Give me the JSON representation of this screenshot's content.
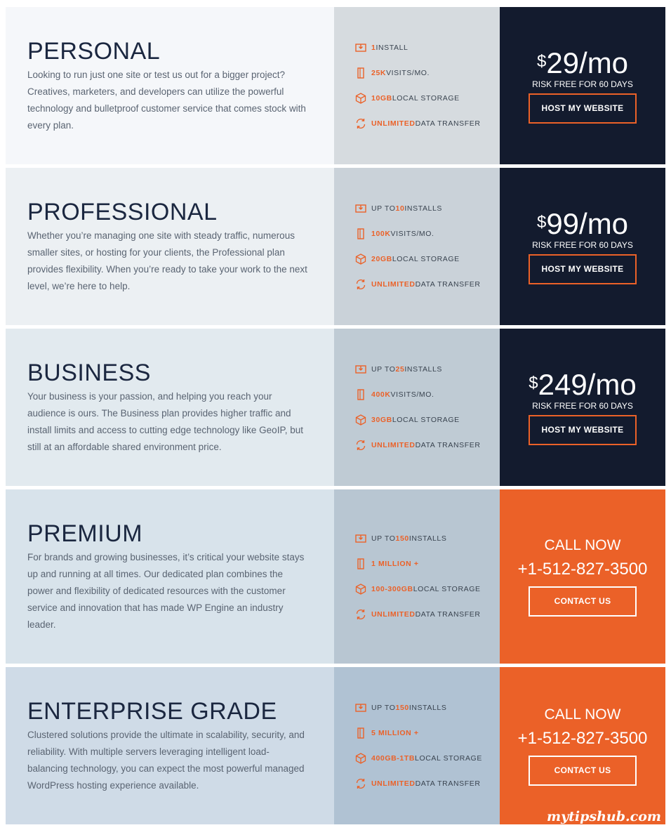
{
  "colors": {
    "accent": "#eb6128",
    "dark": "#131b2e"
  },
  "plans": [
    {
      "title": "PERSONAL",
      "description": "Looking to run just one site or test us out for a bigger project? Creatives, marketers, and developers can utilize the powerful technology and bulletproof customer service that comes stock with every plan.",
      "bg": "#f5f7fa",
      "mid_bg": "#d6dbdf",
      "features": [
        {
          "icon": "install-icon",
          "prefix": "",
          "highlight": "1",
          "suffix": " INSTALL"
        },
        {
          "icon": "visits-icon",
          "prefix": "",
          "highlight": "25K",
          "suffix": " VISITS/MO."
        },
        {
          "icon": "storage-box-icon",
          "prefix": "",
          "highlight": "10GB",
          "suffix": " LOCAL STORAGE"
        },
        {
          "icon": "transfer-refresh-icon",
          "prefix": "",
          "highlight": "UNLIMITED",
          "suffix": " DATA TRANSFER"
        }
      ],
      "price": {
        "type": "price",
        "currency": "$",
        "amount": "29",
        "unit": "/mo",
        "note": "RISK FREE FOR 60 DAYS",
        "button": "HOST MY WEBSITE"
      }
    },
    {
      "title": "PROFESSIONAL",
      "description": "Whether you’re managing one site with steady traffic, numerous smaller sites, or hosting for your clients, the Professional plan provides flexibility. When you’re ready to take your work to the next level, we’re here to help.",
      "bg": "#ecf0f3",
      "mid_bg": "#cad2d9",
      "features": [
        {
          "icon": "install-icon",
          "prefix": "UP TO ",
          "highlight": "10",
          "suffix": " INSTALLS"
        },
        {
          "icon": "visits-icon",
          "prefix": "",
          "highlight": "100K",
          "suffix": " VISITS/MO."
        },
        {
          "icon": "storage-box-icon",
          "prefix": "",
          "highlight": "20GB",
          "suffix": " LOCAL STORAGE"
        },
        {
          "icon": "transfer-refresh-icon",
          "prefix": "",
          "highlight": "UNLIMITED",
          "suffix": " DATA TRANSFER"
        }
      ],
      "price": {
        "type": "price",
        "currency": "$",
        "amount": "99",
        "unit": "/mo",
        "note": "RISK FREE FOR 60 DAYS",
        "button": "HOST MY WEBSITE"
      }
    },
    {
      "title": "BUSINESS",
      "description": "Your business is your passion, and helping you reach your audience is ours. The Business plan provides higher traffic and install limits and access to cutting edge technology like GeoIP, but still at an affordable shared environment price.",
      "bg": "#e2eaef",
      "mid_bg": "#bfcbd4",
      "features": [
        {
          "icon": "install-icon",
          "prefix": "UP TO ",
          "highlight": "25",
          "suffix": " INSTALLS"
        },
        {
          "icon": "visits-icon",
          "prefix": "",
          "highlight": "400K",
          "suffix": " VISITS/MO."
        },
        {
          "icon": "storage-box-icon",
          "prefix": "",
          "highlight": "30GB",
          "suffix": " LOCAL STORAGE"
        },
        {
          "icon": "transfer-refresh-icon",
          "prefix": "",
          "highlight": "UNLIMITED",
          "suffix": " DATA TRANSFER"
        }
      ],
      "price": {
        "type": "price",
        "currency": "$",
        "amount": "249",
        "unit": "/mo",
        "note": "RISK FREE FOR 60 DAYS",
        "button": "HOST MY WEBSITE"
      }
    },
    {
      "title": "PREMIUM",
      "description": "For brands and growing businesses, it’s critical your website stays up and running at all times. Our dedicated plan combines the power and flexibility of dedicated resources with the customer service and innovation that has made WP Engine an industry leader.",
      "bg": "#d8e3eb",
      "mid_bg": "#b8c6d2",
      "features": [
        {
          "icon": "install-icon",
          "prefix": "UP TO ",
          "highlight": "150",
          "suffix": " INSTALLS"
        },
        {
          "icon": "visits-icon",
          "prefix": "",
          "highlight": "1 MILLION +",
          "suffix": ""
        },
        {
          "icon": "storage-box-icon",
          "prefix": "",
          "highlight": "100-300GB",
          "suffix": " LOCAL STORAGE"
        },
        {
          "icon": "transfer-refresh-icon",
          "prefix": "",
          "highlight": "UNLIMITED",
          "suffix": " DATA TRANSFER"
        }
      ],
      "price": {
        "type": "call",
        "call": "CALL NOW",
        "phone": "+1-512-827-3500",
        "button": "CONTACT US"
      }
    },
    {
      "title": "ENTERPRISE GRADE",
      "description": "Clustered solutions provide the ultimate in scalability, security, and reliability. With multiple servers leveraging intelligent load-balancing technology, you can expect the most powerful managed WordPress hosting experience available.",
      "bg": "#cfdbe7",
      "mid_bg": "#b0c2d3",
      "features": [
        {
          "icon": "install-icon",
          "prefix": "UP TO ",
          "highlight": "150",
          "suffix": " INSTALLS"
        },
        {
          "icon": "visits-icon",
          "prefix": "",
          "highlight": "5 MILLION +",
          "suffix": ""
        },
        {
          "icon": "storage-box-icon",
          "prefix": "",
          "highlight": "400GB-1TB",
          "suffix": " LOCAL STORAGE"
        },
        {
          "icon": "transfer-refresh-icon",
          "prefix": "",
          "highlight": "UNLIMITED",
          "suffix": " DATA TRANSFER"
        }
      ],
      "price": {
        "type": "call",
        "call": "CALL NOW",
        "phone": "+1-512-827-3500",
        "button": "CONTACT US"
      }
    }
  ],
  "watermark": "mytipshub.com"
}
